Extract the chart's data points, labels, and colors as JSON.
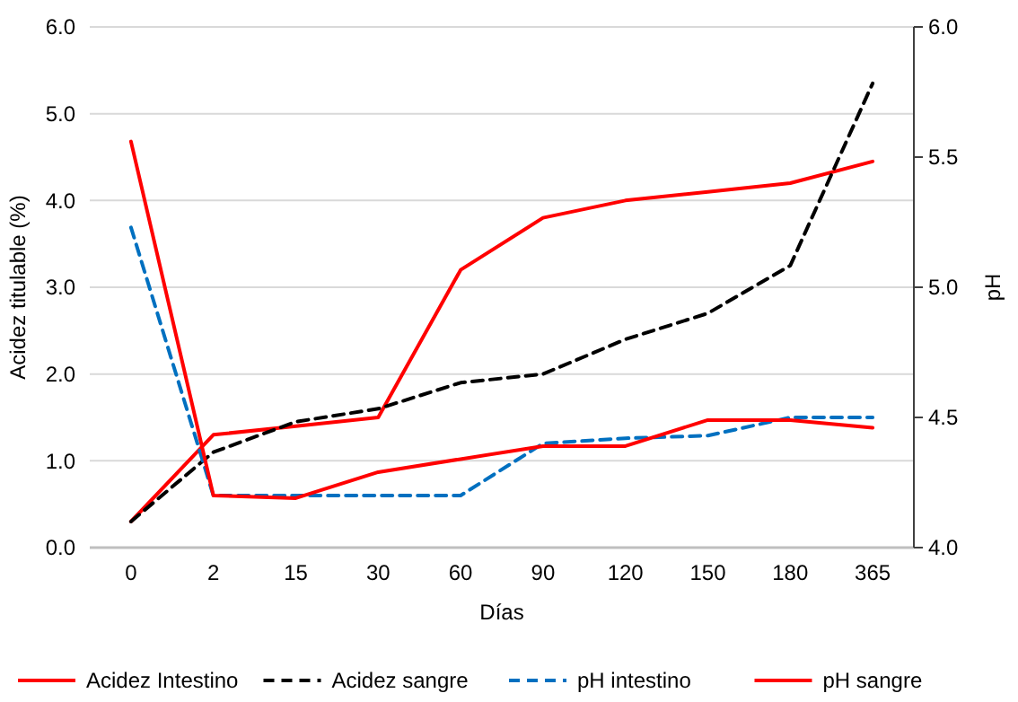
{
  "chart_data": {
    "type": "line",
    "xlabel": "Días",
    "ylabel": "Acidez titulable (%)",
    "y2label": "pH",
    "categories": [
      "0",
      "2",
      "15",
      "30",
      "60",
      "90",
      "120",
      "150",
      "180",
      "365"
    ],
    "ylim": [
      0,
      6
    ],
    "yticks": [
      {
        "value": 0,
        "label": "0.0"
      },
      {
        "value": 1,
        "label": "1.0"
      },
      {
        "value": 2,
        "label": "2.0"
      },
      {
        "value": 3,
        "label": "3.0"
      },
      {
        "value": 4,
        "label": "4.0"
      },
      {
        "value": 5,
        "label": "5.0"
      },
      {
        "value": 6,
        "label": "6.0"
      }
    ],
    "y2lim": [
      4,
      6
    ],
    "y2ticks": [
      {
        "value": 4,
        "label": "4.0"
      },
      {
        "value": 4.5,
        "label": "4.5"
      },
      {
        "value": 5,
        "label": "5.0"
      },
      {
        "value": 5.5,
        "label": "5.5"
      },
      {
        "value": 6,
        "label": "6.0"
      }
    ],
    "grid": "y",
    "legend": "bottom",
    "marker": "none",
    "series": [
      {
        "name": "Acidez Intestino",
        "color": "#ff0000",
        "line_style": "solid",
        "values": [
          0.3,
          1.3,
          1.4,
          1.5,
          3.2,
          3.8,
          4.0,
          4.1,
          4.2,
          4.45
        ]
      },
      {
        "name": "Acidez sangre",
        "color": "#000000",
        "line_style": "dashed",
        "values": [
          0.3,
          1.1,
          1.45,
          1.6,
          1.9,
          2.0,
          2.4,
          2.7,
          3.25,
          5.35
        ]
      },
      {
        "name": "pH intestino",
        "color": "#0070c0",
        "line_style": "dashed",
        "axis": "y2",
        "values": [
          5.23,
          4.2,
          4.2,
          4.2,
          4.2,
          4.4,
          4.42,
          4.43,
          4.5,
          4.5
        ]
      },
      {
        "name": "pH sangre",
        "color": "#ff0000",
        "line_style": "solid",
        "axis": "y2",
        "values": [
          5.56,
          4.2,
          4.19,
          4.29,
          4.34,
          4.39,
          4.39,
          4.49,
          4.49,
          4.46
        ]
      }
    ]
  }
}
